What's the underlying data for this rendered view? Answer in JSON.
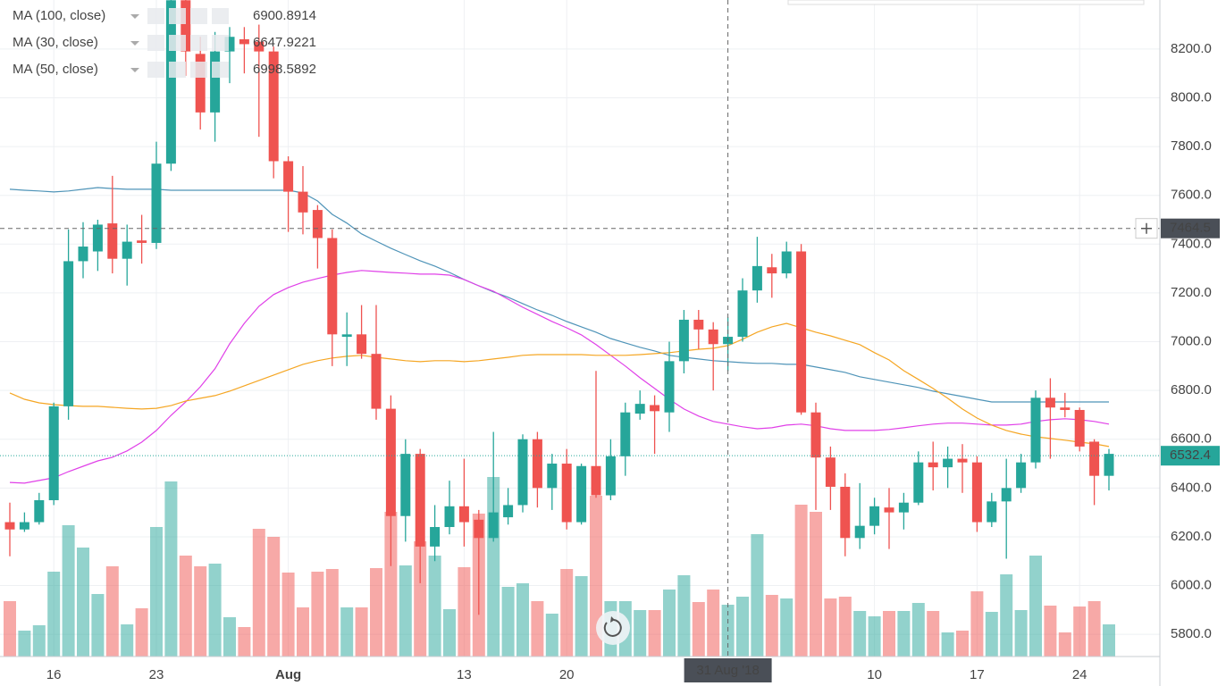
{
  "chart_data": {
    "type": "candlestick",
    "x": [
      "2018-07-13",
      "2018-07-14",
      "2018-07-15",
      "2018-07-16",
      "2018-07-17",
      "2018-07-18",
      "2018-07-19",
      "2018-07-20",
      "2018-07-21",
      "2018-07-22",
      "2018-07-23",
      "2018-07-24",
      "2018-07-25",
      "2018-07-26",
      "2018-07-27",
      "2018-07-28",
      "2018-07-29",
      "2018-07-30",
      "2018-07-31",
      "2018-08-01",
      "2018-08-02",
      "2018-08-03",
      "2018-08-04",
      "2018-08-05",
      "2018-08-06",
      "2018-08-07",
      "2018-08-08",
      "2018-08-09",
      "2018-08-10",
      "2018-08-11",
      "2018-08-12",
      "2018-08-13",
      "2018-08-14",
      "2018-08-15",
      "2018-08-16",
      "2018-08-17",
      "2018-08-18",
      "2018-08-19",
      "2018-08-20",
      "2018-08-21",
      "2018-08-22",
      "2018-08-23",
      "2018-08-24",
      "2018-08-25",
      "2018-08-26",
      "2018-08-27",
      "2018-08-28",
      "2018-08-29",
      "2018-08-30",
      "2018-08-31",
      "2018-09-01",
      "2018-09-02",
      "2018-09-03",
      "2018-09-04",
      "2018-09-05",
      "2018-09-06",
      "2018-09-07",
      "2018-09-08",
      "2018-09-09",
      "2018-09-10",
      "2018-09-11",
      "2018-09-12",
      "2018-09-13",
      "2018-09-14",
      "2018-09-15",
      "2018-09-16",
      "2018-09-17",
      "2018-09-18",
      "2018-09-19",
      "2018-09-20",
      "2018-09-21",
      "2018-09-22",
      "2018-09-23",
      "2018-09-24",
      "2018-09-25",
      "2018-09-26"
    ],
    "open": [
      6260,
      6230,
      6260,
      6350,
      6735,
      7330,
      7370,
      7485,
      7340,
      7415,
      7405,
      7730,
      8400,
      8180,
      7940,
      8190,
      8240,
      8230,
      8190,
      7740,
      7615,
      7540,
      7425,
      7020,
      7030,
      6950,
      6725,
      6285,
      6540,
      6160,
      6240,
      6325,
      6270,
      6195,
      6280,
      6330,
      6600,
      6400,
      6500,
      6260,
      6490,
      6370,
      6530,
      6705,
      6740,
      6710,
      6920,
      7090,
      7050,
      6990,
      7020,
      7210,
      7305,
      7280,
      7370,
      6710,
      6525,
      6405,
      6195,
      6245,
      6320,
      6300,
      6340,
      6505,
      6485,
      6520,
      6505,
      6260,
      6345,
      6400,
      6505,
      6770,
      6730,
      6720,
      6590,
      6450
    ],
    "high": [
      6340,
      6300,
      6380,
      6750,
      7460,
      7490,
      7500,
      7680,
      7480,
      7520,
      7820,
      8500,
      8500,
      8250,
      8270,
      8290,
      8290,
      8300,
      8210,
      7760,
      7720,
      7560,
      7460,
      7120,
      7150,
      7150,
      6780,
      6600,
      6560,
      6330,
      6430,
      6520,
      6310,
      6630,
      6400,
      6620,
      6630,
      6540,
      6560,
      6500,
      6880,
      6600,
      6750,
      6800,
      6780,
      7000,
      7130,
      7130,
      7080,
      7100,
      7260,
      7430,
      7360,
      7410,
      7400,
      6750,
      6570,
      6460,
      6420,
      6360,
      6400,
      6380,
      6550,
      6590,
      6570,
      6580,
      6530,
      6380,
      6520,
      6540,
      6800,
      6850,
      6790,
      6730,
      6600,
      6560
    ],
    "low": [
      6120,
      6220,
      6250,
      6330,
      6680,
      7260,
      7290,
      7280,
      7230,
      7320,
      7380,
      7700,
      8090,
      7870,
      7820,
      8060,
      8100,
      7840,
      7670,
      7450,
      7440,
      7300,
      6900,
      6900,
      6930,
      6680,
      6080,
      6180,
      6010,
      6100,
      6210,
      6160,
      5880,
      6180,
      6250,
      6300,
      6320,
      6310,
      6230,
      6250,
      6360,
      6350,
      6450,
      6680,
      6540,
      6630,
      6870,
      6970,
      6800,
      6880,
      7000,
      7160,
      7180,
      7260,
      6700,
      6310,
      6310,
      6120,
      6150,
      6210,
      6150,
      6230,
      6330,
      6390,
      6400,
      6380,
      6220,
      6240,
      6110,
      6380,
      6480,
      6520,
      6690,
      6550,
      6330,
      6390
    ],
    "close": [
      6230,
      6260,
      6350,
      6735,
      7330,
      7390,
      7480,
      7340,
      7410,
      7405,
      7730,
      8400,
      8190,
      7940,
      8190,
      8250,
      8220,
      8190,
      7740,
      7615,
      7530,
      7425,
      7030,
      7030,
      6950,
      6725,
      6285,
      6540,
      6160,
      6240,
      6325,
      6260,
      6195,
      6300,
      6330,
      6600,
      6400,
      6500,
      6260,
      6490,
      6370,
      6530,
      6710,
      6745,
      6715,
      6920,
      7090,
      7050,
      6990,
      7020,
      7210,
      7310,
      7280,
      7370,
      6710,
      6525,
      6405,
      6195,
      6245,
      6325,
      6300,
      6340,
      6505,
      6485,
      6520,
      6505,
      6260,
      6345,
      6400,
      6505,
      6770,
      6730,
      6720,
      6570,
      6450,
      6540
    ],
    "volume": [
      62,
      29,
      35,
      95,
      147,
      122,
      70,
      101,
      36,
      54,
      145,
      196,
      113,
      101,
      104,
      44,
      33,
      143,
      134,
      94,
      55,
      95,
      98,
      55,
      55,
      99,
      162,
      102,
      129,
      113,
      53,
      100,
      160,
      201,
      78,
      82,
      62,
      48,
      98,
      90,
      180,
      62,
      62,
      52,
      52,
      75,
      91,
      61,
      75,
      58,
      67,
      137,
      69,
      65,
      170,
      162,
      65,
      67,
      51,
      45,
      51,
      51,
      60,
      51,
      27,
      29,
      73,
      50,
      92,
      52,
      113,
      57,
      27,
      56,
      62,
      36
    ],
    "up_color": "#26a69a",
    "down_color": "#ef5350",
    "series": [
      {
        "name": "MA (100, close)",
        "color": "#4f94b8",
        "last_value": 6900.8914,
        "values": [
          7625,
          7621,
          7618,
          7614,
          7618,
          7625,
          7632,
          7628,
          7625,
          7625,
          7625,
          7621,
          7621,
          7621,
          7621,
          7621,
          7621,
          7621,
          7621,
          7621,
          7610,
          7577,
          7522,
          7486,
          7442,
          7412,
          7383,
          7357,
          7332,
          7310,
          7284,
          7255,
          7229,
          7204,
          7182,
          7156,
          7130,
          7108,
          7083,
          7061,
          7039,
          7013,
          6995,
          6977,
          6962,
          6944,
          6936,
          6929,
          6922,
          6918,
          6914,
          6911,
          6911,
          6907,
          6907,
          6896,
          6885,
          6874,
          6856,
          6845,
          6834,
          6823,
          6812,
          6797,
          6786,
          6775,
          6764,
          6753,
          6753,
          6753,
          6753,
          6753,
          6753,
          6753,
          6753,
          6753
        ]
      },
      {
        "name": "MA (30, close)",
        "color": "#e040e8",
        "last_value": 6647.9221,
        "values": [
          6423,
          6420,
          6431,
          6442,
          6467,
          6489,
          6511,
          6526,
          6552,
          6588,
          6636,
          6698,
          6753,
          6815,
          6889,
          6991,
          7075,
          7145,
          7193,
          7222,
          7244,
          7259,
          7273,
          7284,
          7292,
          7288,
          7284,
          7281,
          7277,
          7277,
          7273,
          7255,
          7229,
          7207,
          7174,
          7141,
          7112,
          7083,
          7057,
          7028,
          6988,
          6944,
          6900,
          6852,
          6808,
          6764,
          6724,
          6695,
          6673,
          6662,
          6651,
          6643,
          6647,
          6658,
          6662,
          6655,
          6643,
          6636,
          6636,
          6636,
          6640,
          6647,
          6655,
          6662,
          6666,
          6666,
          6662,
          6658,
          6658,
          6662,
          6673,
          6680,
          6684,
          6680,
          6673,
          6662
        ]
      },
      {
        "name": "MA (50, close)",
        "color": "#f5a623",
        "last_value": 6998.5892,
        "values": [
          6790,
          6764,
          6749,
          6742,
          6738,
          6735,
          6735,
          6731,
          6727,
          6724,
          6727,
          6738,
          6757,
          6768,
          6779,
          6797,
          6819,
          6841,
          6863,
          6885,
          6907,
          6922,
          6933,
          6940,
          6944,
          6936,
          6929,
          6922,
          6918,
          6922,
          6922,
          6918,
          6922,
          6929,
          6936,
          6944,
          6947,
          6947,
          6947,
          6947,
          6944,
          6944,
          6944,
          6947,
          6951,
          6955,
          6962,
          6969,
          6973,
          6984,
          7010,
          7039,
          7061,
          7075,
          7057,
          7039,
          7024,
          7006,
          6988,
          6955,
          6925,
          6881,
          6845,
          6808,
          6768,
          6724,
          6687,
          6658,
          6636,
          6621,
          6610,
          6603,
          6596,
          6588,
          6581,
          6570
        ]
      }
    ],
    "ylim": [
      5709,
      8401
    ],
    "yticks": [
      {
        "value": 5800,
        "label": "5800.0"
      },
      {
        "value": 6000,
        "label": "6000.0"
      },
      {
        "value": 6200,
        "label": "6200.0"
      },
      {
        "value": 6400,
        "label": "6400.0"
      },
      {
        "value": 6600,
        "label": "6600.0"
      },
      {
        "value": 6800,
        "label": "6800.0"
      },
      {
        "value": 7000,
        "label": "7000.0"
      },
      {
        "value": 7200,
        "label": "7200.0"
      },
      {
        "value": 7400,
        "label": "7400.0"
      },
      {
        "value": 7600,
        "label": "7600.0"
      },
      {
        "value": 7800,
        "label": "7800.0"
      },
      {
        "value": 8000,
        "label": "8000.0"
      },
      {
        "value": 8200,
        "label": "8200.0"
      }
    ],
    "xticks": [
      {
        "value": "2018-07-16",
        "label": "16"
      },
      {
        "value": "2018-07-23",
        "label": "23"
      },
      {
        "value": "2018-08-01",
        "label": "Aug"
      },
      {
        "value": "2018-08-13",
        "label": "13"
      },
      {
        "value": "2018-08-20",
        "label": "20"
      },
      {
        "value": "2018-09-10",
        "label": "10"
      },
      {
        "value": "2018-09-17",
        "label": "17"
      },
      {
        "value": "2018-09-24",
        "label": "24"
      }
    ],
    "grid": true,
    "crosshair": {
      "price": 7464.5,
      "x": {
        "value": "2018-08-31",
        "label": "31 Aug '18"
      }
    },
    "last_price": 6532.4
  }
}
